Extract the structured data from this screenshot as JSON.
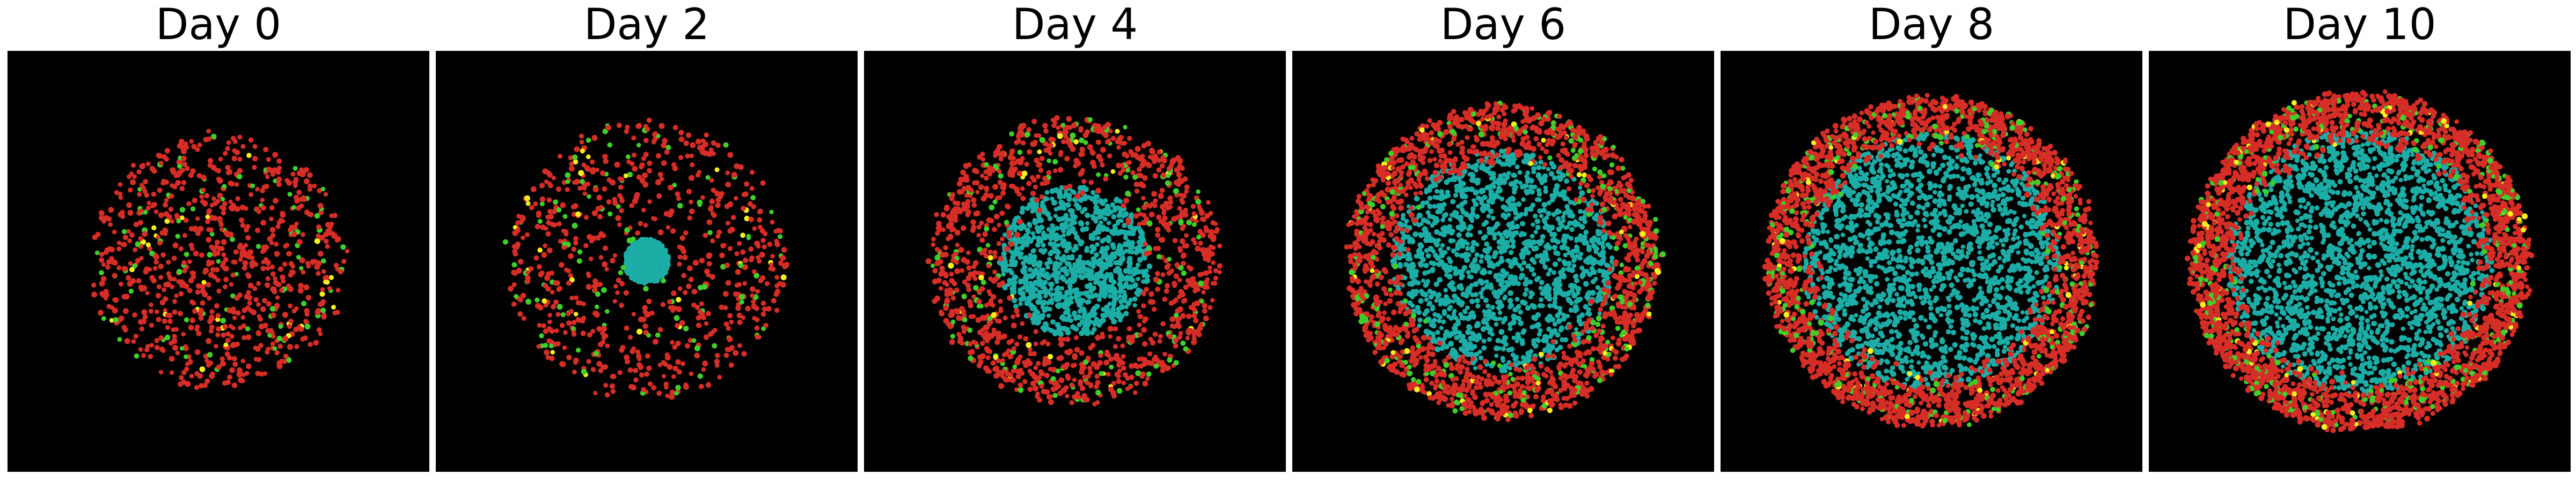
{
  "figure": {
    "panels": [
      {
        "title": "Day 0",
        "day": 0,
        "colony_radius": 0.3,
        "core_radius": 0.0,
        "rim_thickness": 0.0,
        "cell_count": 900
      },
      {
        "title": "Day 2",
        "day": 2,
        "colony_radius": 0.33,
        "core_radius": 0.05,
        "rim_thickness": 0.0,
        "cell_count": 1400
      },
      {
        "title": "Day 4",
        "day": 4,
        "colony_radius": 0.34,
        "core_radius": 0.17,
        "rim_thickness": 0.1,
        "cell_count": 2200
      },
      {
        "title": "Day 6",
        "day": 6,
        "colony_radius": 0.37,
        "core_radius": 0.25,
        "rim_thickness": 0.1,
        "cell_count": 3300
      },
      {
        "title": "Day 8",
        "day": 8,
        "colony_radius": 0.39,
        "core_radius": 0.29,
        "rim_thickness": 0.09,
        "cell_count": 4200
      },
      {
        "title": "Day 10",
        "day": 10,
        "colony_radius": 0.4,
        "core_radius": 0.3,
        "rim_thickness": 0.09,
        "cell_count": 4800
      }
    ],
    "cell_colors": {
      "background": "#000000",
      "proliferating": "#d62d27",
      "quiescent_green": "#3fcf2a",
      "dividing_yellow": "#f4f01e",
      "necrotic_core": "#1cada6"
    }
  }
}
